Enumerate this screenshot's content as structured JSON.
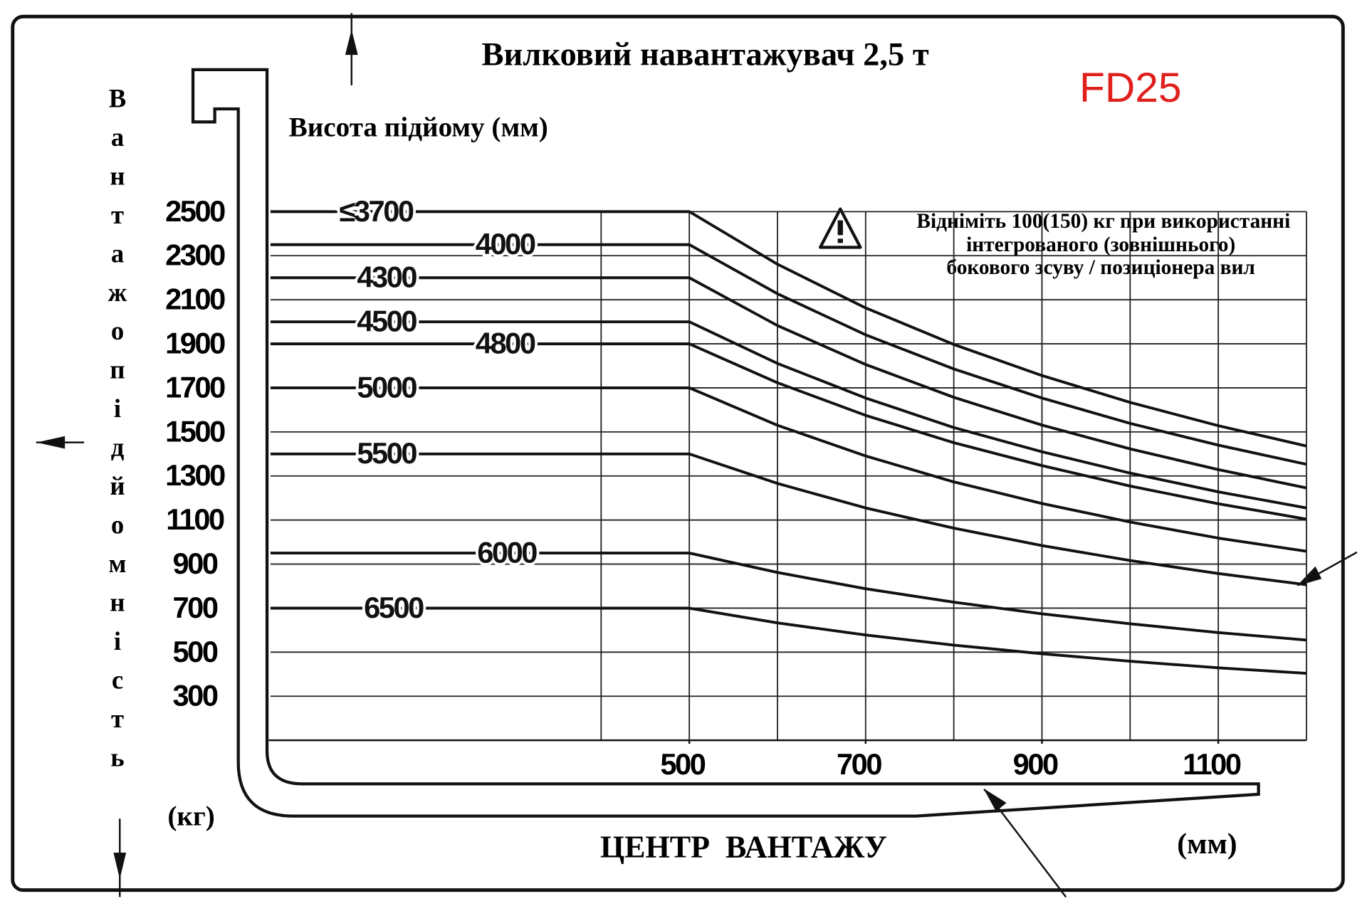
{
  "chart_data": {
    "type": "line",
    "title": "Вилковий навантажувач 2,5 т",
    "model": "FD25",
    "subtitle": "Висота підйому (мм)",
    "ylabel": "Вантажопідйомність",
    "ylabel_unit": "(кг)",
    "xlabel": "ЦЕНТР  ВАНТАЖУ",
    "xlabel_unit": "(мм)",
    "note": [
      "Відніміть 100(150) кг при використанні",
      "інтегрованого (зовнішнього)",
      "бокового зсуву / позиціонера вил"
    ],
    "x": [
      25,
      500,
      600,
      700,
      800,
      900,
      1000,
      1100,
      1200
    ],
    "series": [
      {
        "name": "≤3700",
        "color": "#111111",
        "values": [
          2500,
          2500,
          2261,
          2063,
          1897,
          1756,
          1634,
          1528,
          1436
        ]
      },
      {
        "name": "4000",
        "color": "#111111",
        "values": [
          2350,
          2350,
          2127,
          1941,
          1786,
          1654,
          1539,
          1440,
          1353
        ]
      },
      {
        "name": "4300",
        "color": "#111111",
        "values": [
          2200,
          2200,
          1983,
          1806,
          1657,
          1531,
          1423,
          1329,
          1246
        ]
      },
      {
        "name": "4500",
        "color": "#111111",
        "values": [
          2000,
          2000,
          1811,
          1654,
          1520,
          1410,
          1313,
          1228,
          1155
        ]
      },
      {
        "name": "4800",
        "color": "#111111",
        "values": [
          1900,
          1900,
          1723,
          1575,
          1451,
          1347,
          1254,
          1174,
          1104
        ]
      },
      {
        "name": "5000",
        "color": "#111111",
        "values": [
          1700,
          1700,
          1530,
          1391,
          1273,
          1175,
          1091,
          1018,
          958
        ]
      },
      {
        "name": "5500",
        "color": "#111111",
        "values": [
          1400,
          1400,
          1266,
          1155,
          1063,
          984,
          916,
          857,
          806
        ]
      },
      {
        "name": "6000",
        "color": "#111111",
        "values": [
          950,
          950,
          862,
          788,
          727,
          674,
          629,
          589,
          555
        ]
      },
      {
        "name": "6500",
        "color": "#111111",
        "values": [
          700,
          700,
          633,
          578,
          532,
          493,
          459,
          429,
          404
        ]
      }
    ],
    "xlim": [
      25,
      1200
    ],
    "ylim": [
      100,
      2500
    ],
    "xticks": [
      500,
      700,
      900,
      1100
    ],
    "xminor": [
      400,
      500,
      600,
      700,
      800,
      900,
      1000,
      1100,
      1200
    ],
    "yticks": [
      300,
      500,
      700,
      900,
      1100,
      1300,
      1500,
      1700,
      1900,
      2100,
      2300,
      2500
    ],
    "grid": true
  }
}
